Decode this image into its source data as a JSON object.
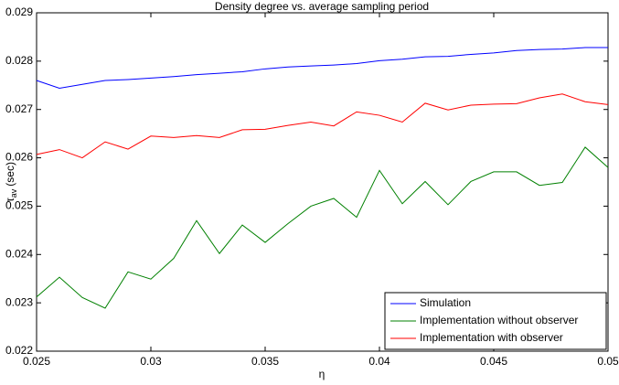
{
  "chart_data": {
    "type": "line",
    "title": "Density degree vs. average sampling period",
    "xlabel": "η",
    "ylabel": {
      "symbol": "τ",
      "subscript": "av",
      "unit": "(sec)"
    },
    "x": [
      0.025,
      0.026,
      0.027,
      0.028,
      0.029,
      0.03,
      0.031,
      0.032,
      0.033,
      0.034,
      0.035,
      0.036,
      0.037,
      0.038,
      0.039,
      0.04,
      0.041,
      0.042,
      0.043,
      0.044,
      0.045,
      0.046,
      0.047,
      0.048,
      0.049,
      0.05
    ],
    "series": [
      {
        "name": "Simulation",
        "color": "#0000ff",
        "values": [
          0.0276,
          0.02744,
          0.02752,
          0.0276,
          0.02762,
          0.02765,
          0.02768,
          0.02772,
          0.02775,
          0.02778,
          0.02784,
          0.02788,
          0.0279,
          0.02792,
          0.02795,
          0.02801,
          0.02804,
          0.02809,
          0.0281,
          0.02814,
          0.02817,
          0.02822,
          0.02824,
          0.02825,
          0.02828,
          0.02828
        ]
      },
      {
        "name": "Implementation without observer",
        "color": "#008000",
        "values": [
          0.02312,
          0.02353,
          0.02311,
          0.02289,
          0.02364,
          0.02349,
          0.02392,
          0.0247,
          0.02402,
          0.02461,
          0.02425,
          0.02464,
          0.025,
          0.02516,
          0.02477,
          0.02574,
          0.02505,
          0.02551,
          0.02503,
          0.02551,
          0.02571,
          0.02571,
          0.02543,
          0.02549,
          0.02622,
          0.0258
        ]
      },
      {
        "name": "Implementation with observer",
        "color": "#ff0000",
        "values": [
          0.02607,
          0.02617,
          0.026,
          0.02633,
          0.02618,
          0.02645,
          0.02642,
          0.02646,
          0.02642,
          0.02658,
          0.02659,
          0.02667,
          0.02674,
          0.02666,
          0.02695,
          0.02688,
          0.02674,
          0.02713,
          0.02699,
          0.02709,
          0.02711,
          0.02712,
          0.02724,
          0.02732,
          0.02716,
          0.0271
        ]
      }
    ],
    "xlim": [
      0.025,
      0.05
    ],
    "xticks": [
      0.025,
      0.03,
      0.035,
      0.04,
      0.045,
      0.05
    ],
    "ylim": [
      0.022,
      0.029
    ],
    "yticks": [
      0.022,
      0.023,
      0.024,
      0.025,
      0.026,
      0.027,
      0.028,
      0.029
    ],
    "grid": false,
    "legend": "lower right"
  }
}
